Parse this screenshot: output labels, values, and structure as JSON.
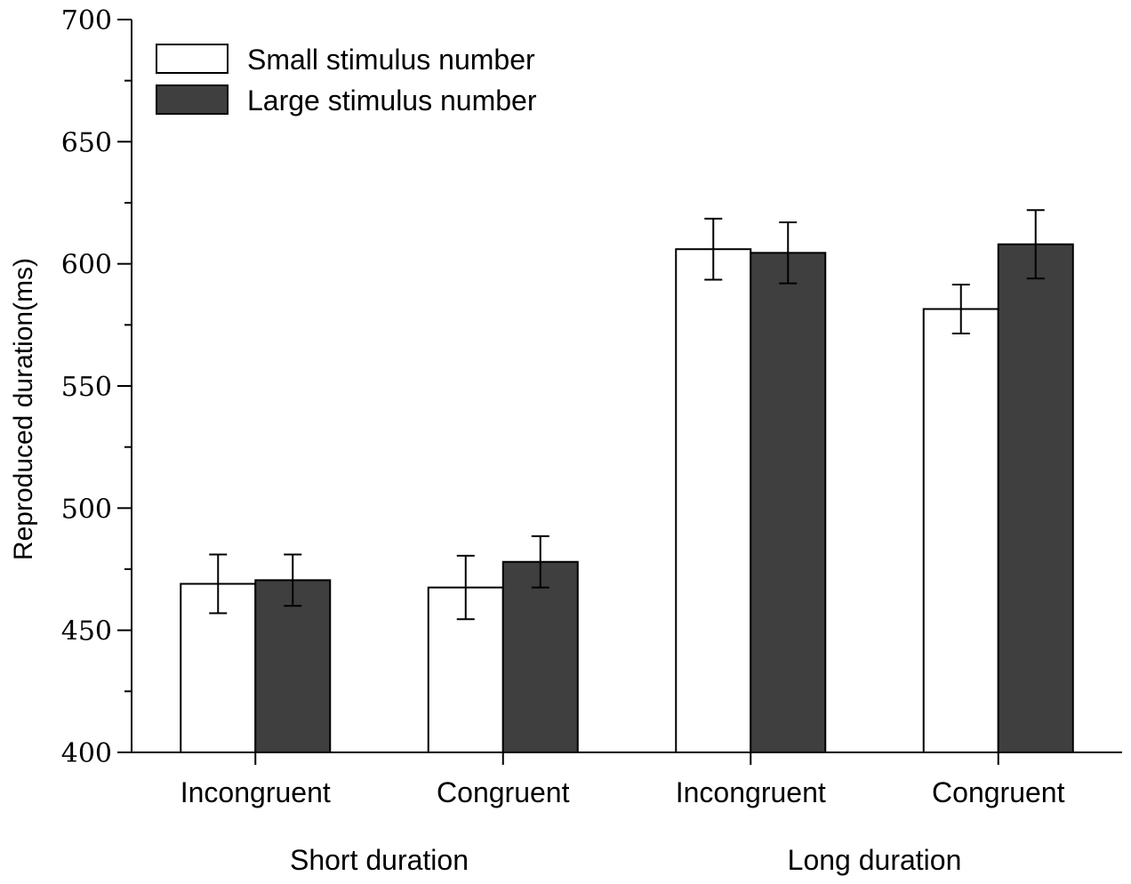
{
  "chart_data": {
    "type": "bar",
    "title": "",
    "ylabel": "Reproduced duration(ms)",
    "xlabel": "",
    "ylim": [
      400,
      700
    ],
    "yticks": [
      400,
      450,
      500,
      550,
      600,
      650,
      700
    ],
    "categories": [
      "Incongruent",
      "Congruent",
      "Incongruent",
      "Congruent"
    ],
    "groups": [
      {
        "label": "Short duration",
        "categories": [
          0,
          1
        ]
      },
      {
        "label": "Long duration",
        "categories": [
          2,
          3
        ]
      }
    ],
    "series": [
      {
        "name": "Small stimulus number",
        "color": "#ffffff",
        "values": [
          469,
          467.5,
          606,
          581.5
        ],
        "errors": [
          12,
          13,
          12.5,
          10
        ]
      },
      {
        "name": "Large stimulus number",
        "color": "#3f3f3f",
        "values": [
          470.5,
          478,
          604.5,
          608
        ],
        "errors": [
          10.5,
          10.5,
          12.5,
          14
        ]
      }
    ],
    "legend_position": "top-left"
  }
}
